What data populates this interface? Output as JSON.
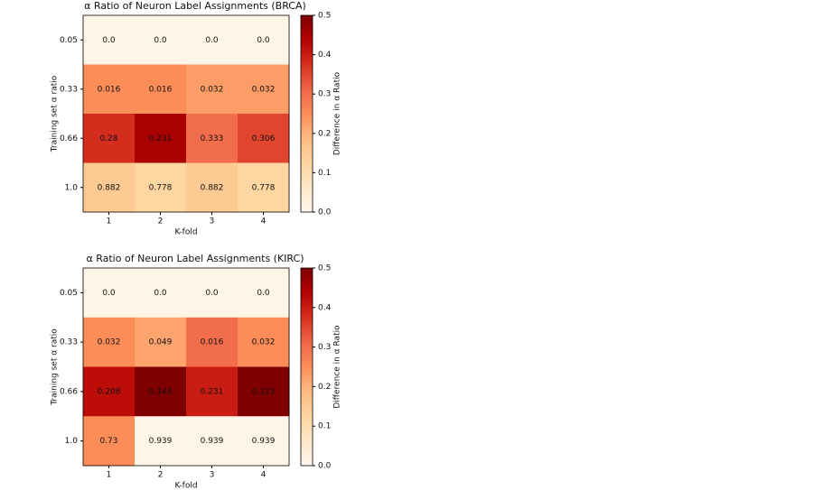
{
  "chart_data": [
    {
      "type": "heatmap",
      "title": "α Ratio of Neuron Label Assignments (BRCA)",
      "x_label": "K-fold",
      "y_label": "Training set α ratio",
      "categories": [
        "1",
        "2",
        "3",
        "4"
      ],
      "rows": [
        "0.05",
        "0.33",
        "0.66",
        "1.0"
      ],
      "values": [
        [
          0,
          0,
          0,
          0
        ],
        [
          0.016,
          0.016,
          0.032,
          0.032
        ],
        [
          0.28,
          0.231,
          0.333,
          0.306
        ],
        [
          0.882,
          0.778,
          0.882,
          0.778
        ]
      ],
      "value_labels": [
        [
          "0.0",
          "0.0",
          "0.0",
          "0.0"
        ],
        [
          "0.016",
          "0.016",
          "0.032",
          "0.032"
        ],
        [
          "0.28",
          "0.231",
          "0.333",
          "0.306"
        ],
        [
          "0.882",
          "0.778",
          "0.882",
          "0.778"
        ]
      ],
      "color_values": [
        [
          0.01,
          0.01,
          0.01,
          0.01
        ],
        [
          0.25,
          0.25,
          0.23,
          0.23
        ],
        [
          0.38,
          0.45,
          0.3,
          0.35
        ],
        [
          0.15,
          0.12,
          0.15,
          0.12
        ]
      ],
      "colormap": "OrRd",
      "colorbar_label": "Difference in α Ratio",
      "clim": [
        0,
        0.5
      ],
      "cticks": [
        {
          "value": 0,
          "label": "0.0"
        },
        0.1,
        0.2,
        0.3,
        0.4,
        0.5
      ]
    },
    {
      "type": "heatmap",
      "title": "α Ratio of Neuron Label Assignments (KIRC)",
      "x_label": "K-fold",
      "y_label": "Training set α ratio",
      "categories": [
        "1",
        "2",
        "3",
        "4"
      ],
      "rows": [
        "0.05",
        "0.33",
        "0.66",
        "1.0"
      ],
      "values": [
        [
          0,
          0,
          0,
          0
        ],
        [
          0.032,
          0.049,
          0.016,
          0.032
        ],
        [
          0.208,
          0.143,
          0.231,
          0.123
        ],
        [
          0.73,
          0.939,
          0.939,
          0.939
        ]
      ],
      "value_labels": [
        [
          "0.0",
          "0.0",
          "0.0",
          "0.0"
        ],
        [
          "0.032",
          "0.049",
          "0.016",
          "0.032"
        ],
        [
          "0.208",
          "0.143",
          "0.231",
          "0.123"
        ],
        [
          "0.73",
          "0.939",
          "0.939",
          "0.939"
        ]
      ],
      "color_values": [
        [
          0.01,
          0.01,
          0.01,
          0.01
        ],
        [
          0.25,
          0.22,
          0.3,
          0.25
        ],
        [
          0.42,
          0.5,
          0.4,
          0.5
        ],
        [
          0.25,
          0.01,
          0.01,
          0.01
        ]
      ],
      "colormap": "OrRd",
      "colorbar_label": "Difference in α Ratio",
      "clim": [
        0,
        0.5
      ],
      "cticks": [
        {
          "value": 0,
          "label": "0.0"
        },
        0.1,
        0.2,
        0.3,
        0.4,
        0.5
      ]
    }
  ]
}
